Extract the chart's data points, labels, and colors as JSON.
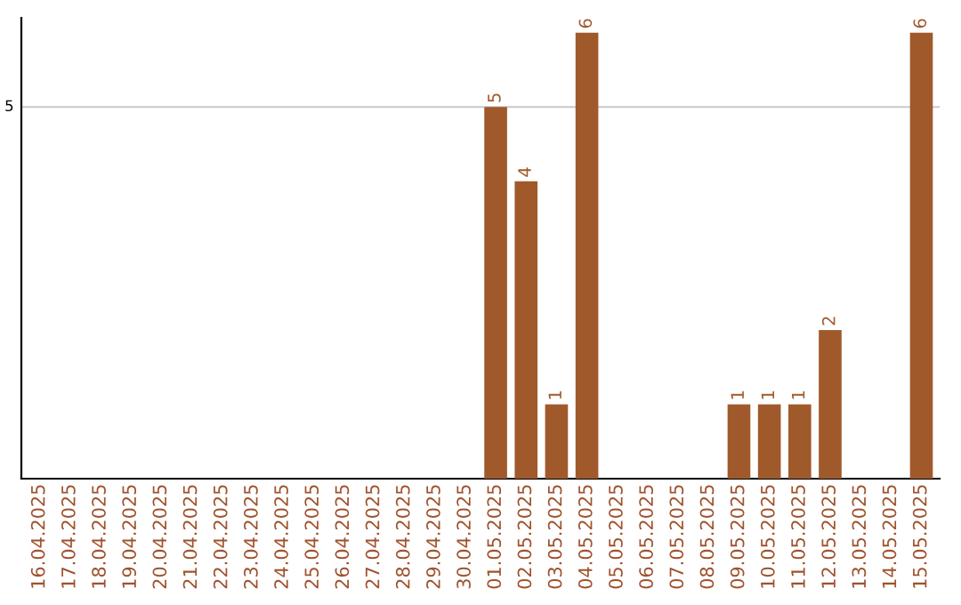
{
  "chart_data": {
    "type": "bar",
    "categories": [
      "16.04.2025",
      "17.04.2025",
      "18.04.2025",
      "19.04.2025",
      "20.04.2025",
      "21.04.2025",
      "22.04.2025",
      "23.04.2025",
      "24.04.2025",
      "25.04.2025",
      "26.04.2025",
      "27.04.2025",
      "28.04.2025",
      "29.04.2025",
      "30.04.2025",
      "01.05.2025",
      "02.05.2025",
      "03.05.2025",
      "04.05.2025",
      "05.05.2025",
      "06.05.2025",
      "07.05.2025",
      "08.05.2025",
      "09.05.2025",
      "10.05.2025",
      "11.05.2025",
      "12.05.2025",
      "13.05.2025",
      "14.05.2025",
      "15.05.2025"
    ],
    "values": [
      null,
      null,
      null,
      null,
      null,
      null,
      null,
      null,
      null,
      null,
      null,
      null,
      null,
      null,
      null,
      5,
      4,
      1,
      6,
      null,
      null,
      null,
      null,
      1,
      1,
      1,
      2,
      null,
      null,
      6
    ],
    "data_labels": true,
    "ylim": [
      0,
      6.2
    ],
    "color": "#a0592b",
    "ref_lines": [
      {
        "axis": "y",
        "value": 5,
        "label": "5",
        "color": "#c8c8c8"
      }
    ],
    "legend": false
  }
}
